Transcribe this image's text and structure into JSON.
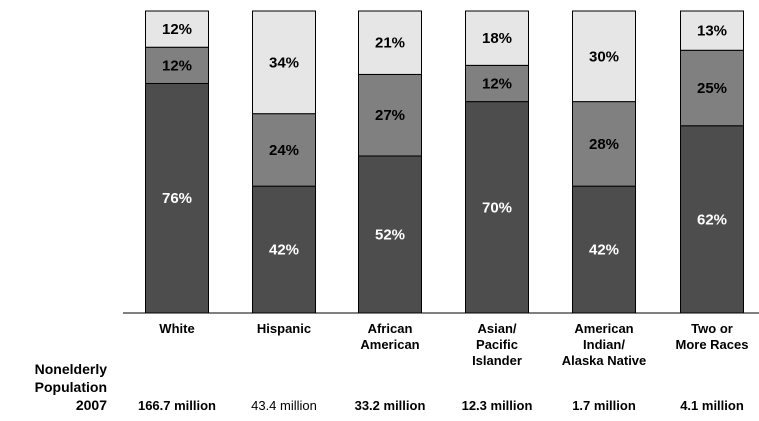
{
  "chart_data": {
    "type": "bar",
    "stacked": true,
    "categories": [
      [
        "White"
      ],
      [
        "Hispanic"
      ],
      [
        "African",
        "American"
      ],
      [
        "Asian/",
        "Pacific",
        "Islander"
      ],
      [
        "American",
        "Indian/",
        "Alaska Native"
      ],
      [
        "Two or",
        "More Races"
      ]
    ],
    "series": [
      {
        "values": [
          76,
          42,
          52,
          70,
          42,
          62
        ],
        "color": "#4d4d4d",
        "label_color": "#ffffff"
      },
      {
        "values": [
          12,
          24,
          27,
          12,
          28,
          25
        ],
        "color": "#808080",
        "label_color": "#000000"
      },
      {
        "values": [
          12,
          34,
          21,
          18,
          30,
          13
        ],
        "color": "#e6e6e6",
        "label_color": "#000000"
      }
    ],
    "value_suffix": "%",
    "ylim": [
      0,
      100
    ]
  },
  "population": {
    "heading": [
      "Nonelderly",
      "Population",
      "2007"
    ],
    "values": [
      "166.7 million",
      "43.4 million",
      "33.2 million",
      "12.3 million",
      "1.7 million",
      "4.1 million"
    ],
    "bold": [
      true,
      false,
      true,
      true,
      true,
      true
    ]
  }
}
